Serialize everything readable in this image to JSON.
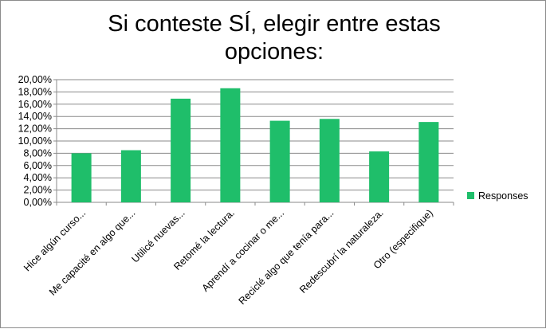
{
  "chart_data": {
    "type": "bar",
    "title_lines": [
      "Si conteste SÍ, elegir entre estas",
      "opciones:"
    ],
    "categories": [
      "Hice algún curso...",
      "Me capacité en algo que...",
      "Utilicé nuevas...",
      "Retomé la lectura.",
      "Aprendí a cocinar o me...",
      "Reciclé algo que tenía para...",
      "Redescubrí la naturaleza.",
      "Otro (especifique)"
    ],
    "series": [
      {
        "name": "Responses",
        "color": "#1fbe6a",
        "values": [
          8.0,
          8.5,
          16.9,
          18.6,
          13.3,
          13.6,
          8.3,
          13.1
        ]
      }
    ],
    "yticks": [
      "0,00%",
      "2,00%",
      "4,00%",
      "6,00%",
      "8,00%",
      "10,00%",
      "12,00%",
      "14,00%",
      "16,00%",
      "18,00%",
      "20,00%"
    ],
    "ylim": [
      0,
      20
    ],
    "grid": true,
    "legend_position": "right"
  }
}
